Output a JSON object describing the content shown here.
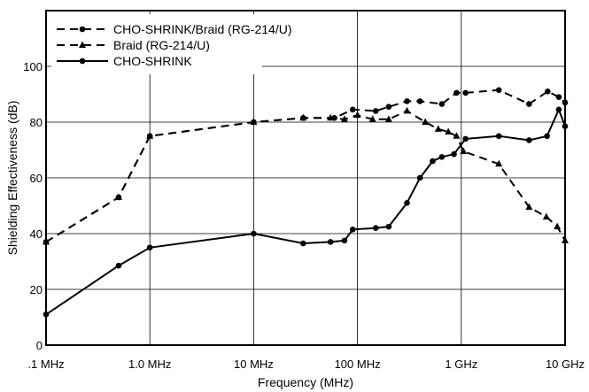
{
  "chart_data": {
    "type": "line",
    "title": "",
    "xlabel": "Frequency (MHz)",
    "ylabel": "Shielding Effectiveness (dB)",
    "x_scale": "log",
    "xlim": [
      0.1,
      10000
    ],
    "ylim": [
      0,
      120
    ],
    "grid": true,
    "legend_position": "top-left",
    "x_ticks": [
      {
        "value": 0.1,
        "label": ".1 MHz"
      },
      {
        "value": 1,
        "label": "1.0 MHz"
      },
      {
        "value": 10,
        "label": "10 MHz"
      },
      {
        "value": 100,
        "label": "100 MHz"
      },
      {
        "value": 1000,
        "label": "1 GHz"
      },
      {
        "value": 10000,
        "label": "10 GHz"
      }
    ],
    "y_ticks": [
      {
        "value": 0,
        "label": "0"
      },
      {
        "value": 20,
        "label": "20"
      },
      {
        "value": 40,
        "label": "40"
      },
      {
        "value": 60,
        "label": "60"
      },
      {
        "value": 80,
        "label": "80"
      },
      {
        "value": 100,
        "label": "100"
      }
    ],
    "series": [
      {
        "name": "CHO-SHRINK/Braid (RG-214/U)",
        "line_style": "dashed",
        "marker": "circle",
        "color": "#000000",
        "points": [
          [
            0.1,
            37
          ],
          [
            0.5,
            53
          ],
          [
            1,
            75
          ],
          [
            10,
            80
          ],
          [
            30,
            81.5
          ],
          [
            60,
            81.5
          ],
          [
            90,
            84.5
          ],
          [
            150,
            84
          ],
          [
            200,
            85.5
          ],
          [
            300,
            87.5
          ],
          [
            400,
            87.5
          ],
          [
            650,
            86.5
          ],
          [
            900,
            90.5
          ],
          [
            1100,
            90.5
          ],
          [
            2300,
            91.5
          ],
          [
            4500,
            86.5
          ],
          [
            6800,
            91
          ],
          [
            8700,
            89
          ],
          [
            10000,
            87
          ]
        ]
      },
      {
        "name": "Braid (RG-214/U)",
        "line_style": "dashed",
        "marker": "triangle",
        "color": "#000000",
        "points": [
          [
            0.1,
            37
          ],
          [
            0.5,
            53
          ],
          [
            1,
            75
          ],
          [
            10,
            80
          ],
          [
            30,
            81.5
          ],
          [
            55,
            81.5
          ],
          [
            75,
            81
          ],
          [
            100,
            82.5
          ],
          [
            140,
            81
          ],
          [
            200,
            81
          ],
          [
            300,
            84
          ],
          [
            450,
            80
          ],
          [
            600,
            77.5
          ],
          [
            750,
            76.5
          ],
          [
            900,
            75
          ],
          [
            1050,
            69.5
          ],
          [
            2300,
            65
          ],
          [
            4500,
            49.5
          ],
          [
            6600,
            46
          ],
          [
            8400,
            42.5
          ],
          [
            10000,
            37.5
          ]
        ]
      },
      {
        "name": "CHO-SHRINK",
        "line_style": "solid",
        "marker": "circle",
        "color": "#000000",
        "points": [
          [
            0.1,
            11
          ],
          [
            0.5,
            28.5
          ],
          [
            1,
            35
          ],
          [
            10,
            40
          ],
          [
            30,
            36.5
          ],
          [
            55,
            37
          ],
          [
            75,
            37.5
          ],
          [
            90,
            41.5
          ],
          [
            150,
            42
          ],
          [
            200,
            42.5
          ],
          [
            300,
            51
          ],
          [
            400,
            60
          ],
          [
            530,
            66
          ],
          [
            650,
            67.5
          ],
          [
            850,
            68.5
          ],
          [
            1100,
            74
          ],
          [
            2300,
            75
          ],
          [
            4500,
            73.5
          ],
          [
            6700,
            75
          ],
          [
            8700,
            84.5
          ],
          [
            10000,
            78.5
          ]
        ]
      }
    ]
  }
}
